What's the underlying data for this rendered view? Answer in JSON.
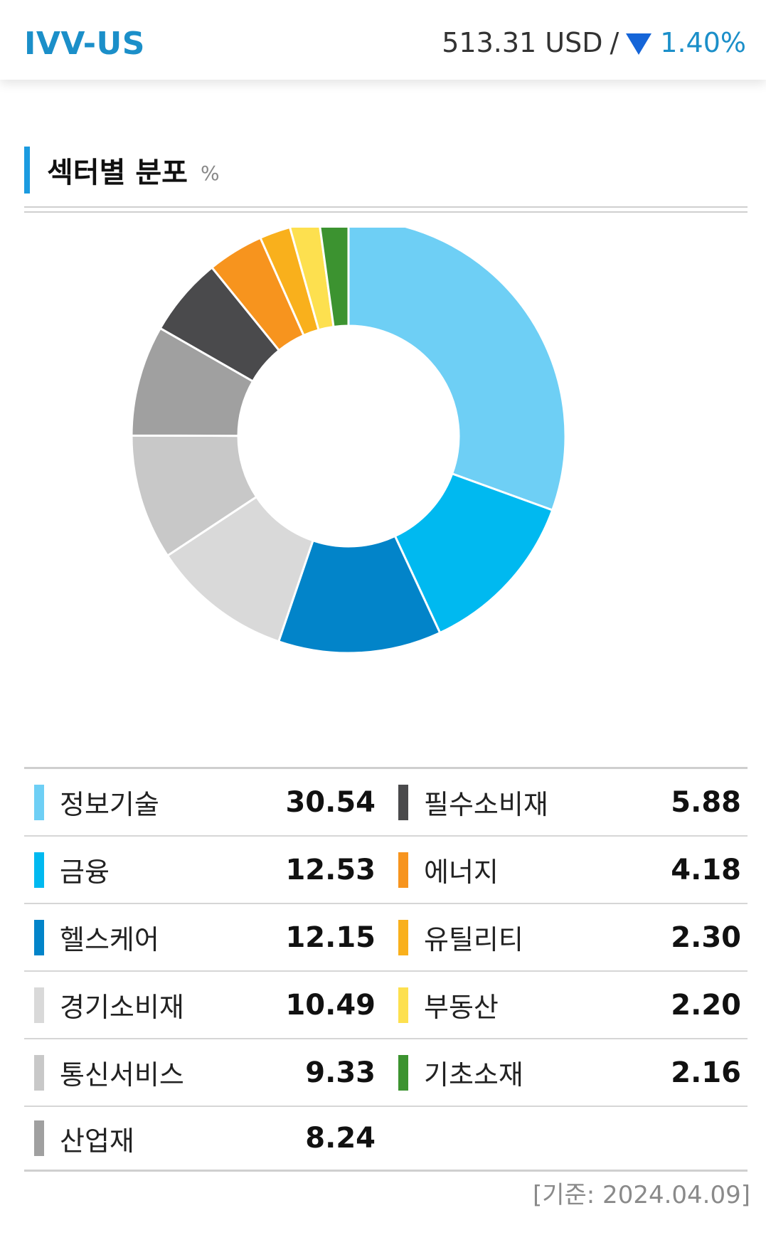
{
  "header": {
    "ticker": "IVV-US",
    "price": "513.31 USD",
    "slash": "/",
    "change": "1.40%",
    "direction_icon": "triangle-down-icon"
  },
  "section": {
    "title": "섹터별 분포",
    "unit": "%"
  },
  "colors": {
    "accent": "#1b9be0",
    "ticker": "#1b8fc9",
    "down": "#1565d8"
  },
  "chart_data": {
    "type": "pie",
    "donut": true,
    "title": "섹터별 분포",
    "unit": "%",
    "categories": [
      "정보기술",
      "금융",
      "헬스케어",
      "경기소비재",
      "통신서비스",
      "산업재",
      "필수소비재",
      "에너지",
      "유틸리티",
      "부동산",
      "기초소재"
    ],
    "values": [
      30.54,
      12.53,
      12.15,
      10.49,
      9.33,
      8.24,
      5.88,
      4.18,
      2.3,
      2.2,
      2.16
    ],
    "colors": [
      "#6ecff5",
      "#00b9f0",
      "#0284c9",
      "#d9d9d9",
      "#c8c8c8",
      "#a0a0a0",
      "#4a4a4c",
      "#f7941e",
      "#f9b01c",
      "#fde04f",
      "#3c9330"
    ]
  },
  "legend": {
    "rows": [
      {
        "left": {
          "label": "정보기술",
          "value": "30.54",
          "color": "#6ecff5"
        },
        "right": {
          "label": "필수소비재",
          "value": "5.88",
          "color": "#4a4a4c"
        }
      },
      {
        "left": {
          "label": "금융",
          "value": "12.53",
          "color": "#00b9f0"
        },
        "right": {
          "label": "에너지",
          "value": "4.18",
          "color": "#f7941e"
        }
      },
      {
        "left": {
          "label": "헬스케어",
          "value": "12.15",
          "color": "#0284c9"
        },
        "right": {
          "label": "유틸리티",
          "value": "2.30",
          "color": "#f9b01c"
        }
      },
      {
        "left": {
          "label": "경기소비재",
          "value": "10.49",
          "color": "#d9d9d9"
        },
        "right": {
          "label": "부동산",
          "value": "2.20",
          "color": "#fde04f"
        }
      },
      {
        "left": {
          "label": "통신서비스",
          "value": "9.33",
          "color": "#c8c8c8"
        },
        "right": {
          "label": "기초소재",
          "value": "2.16",
          "color": "#3c9330"
        }
      },
      {
        "left": {
          "label": "산업재",
          "value": "8.24",
          "color": "#a0a0a0"
        },
        "right": null
      }
    ]
  },
  "footer": {
    "basis": "[기준: 2024.04.09]"
  }
}
